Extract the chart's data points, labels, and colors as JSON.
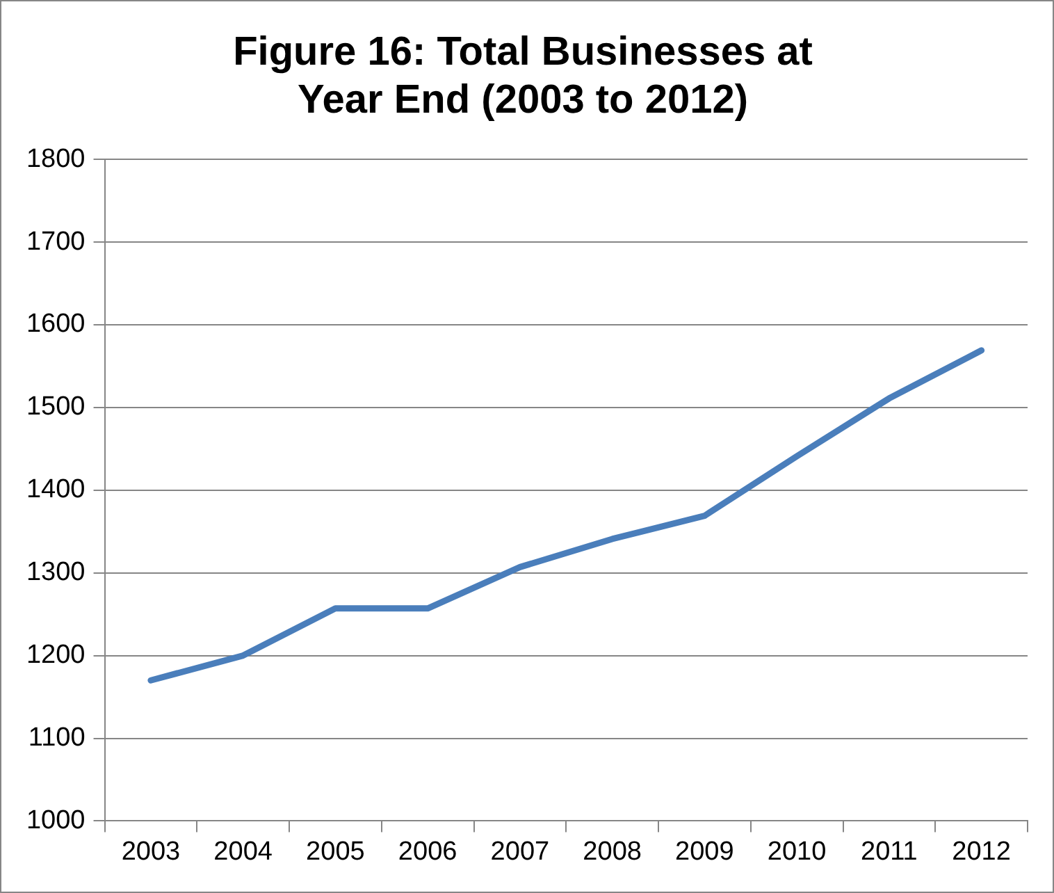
{
  "chart_data": {
    "type": "line",
    "title": "Figure 16: Total Businesses at Year End (2003 to 2012)",
    "categories": [
      "2003",
      "2004",
      "2005",
      "2006",
      "2007",
      "2008",
      "2009",
      "2010",
      "2011",
      "2012"
    ],
    "series": [
      {
        "color": "#4a7ebb",
        "values": [
          1170,
          1200,
          1257,
          1257,
          1307,
          1341,
          1369,
          1441,
          1511,
          1569
        ]
      }
    ],
    "ylim": [
      1000,
      1800
    ],
    "yticks": [
      1000,
      1100,
      1200,
      1300,
      1400,
      1500,
      1600,
      1700,
      1800
    ],
    "grid": "y",
    "legend": false,
    "marker": "none",
    "line_style": "solid"
  }
}
